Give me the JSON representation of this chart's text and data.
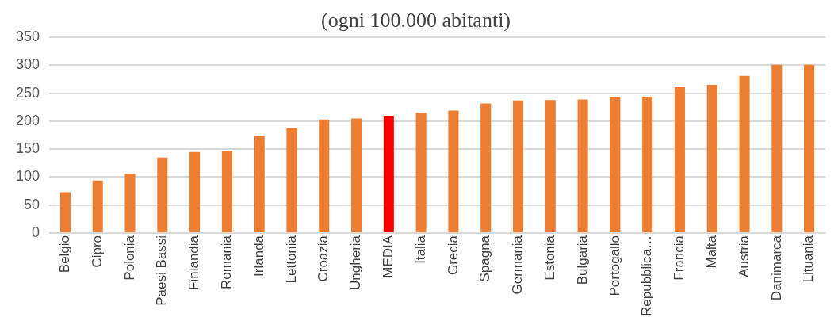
{
  "chart_data": {
    "type": "bar",
    "title": "(ogni 100.000 abitanti)",
    "categories": [
      "Belgio",
      "Cipro",
      "Polonia",
      "Paesi Bassi",
      "Finlandia",
      "Romania",
      "Irlanda",
      "Lettonia",
      "Croazia",
      "Ungheria",
      "MEDIA",
      "Italia",
      "Grecia",
      "Spagna",
      "Germania",
      "Estonia",
      "Bulgaria",
      "Portogallo",
      "Repubblica…",
      "Francia",
      "Malta",
      "Austria",
      "Danimarca",
      "Lituania"
    ],
    "values": [
      73,
      94,
      106,
      135,
      145,
      147,
      174,
      188,
      203,
      205,
      210,
      215,
      219,
      232,
      237,
      238,
      239,
      243,
      244,
      261,
      265,
      281,
      301,
      301
    ],
    "colors": [
      "#ed7d31",
      "#ed7d31",
      "#ed7d31",
      "#ed7d31",
      "#ed7d31",
      "#ed7d31",
      "#ed7d31",
      "#ed7d31",
      "#ed7d31",
      "#ed7d31",
      "#ff0000",
      "#ed7d31",
      "#ed7d31",
      "#ed7d31",
      "#ed7d31",
      "#ed7d31",
      "#ed7d31",
      "#ed7d31",
      "#ed7d31",
      "#ed7d31",
      "#ed7d31",
      "#ed7d31",
      "#ed7d31",
      "#ed7d31"
    ],
    "ylim": [
      0,
      350
    ],
    "yticks": [
      0,
      50,
      100,
      150,
      200,
      250,
      300,
      350
    ],
    "grid": "y",
    "legend": false
  }
}
